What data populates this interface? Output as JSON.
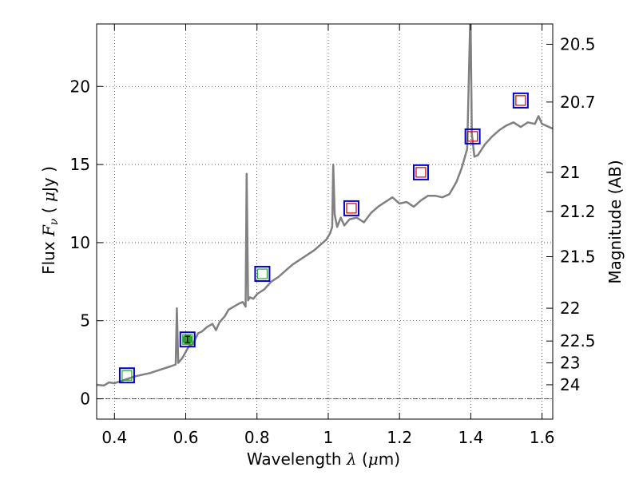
{
  "chart_data": {
    "type": "line",
    "xlabel": {
      "prefix": "Wavelength",
      "symbol": "λ",
      "unit_open": "(",
      "mu": "μ",
      "unit_rest": "m)"
    },
    "ylabel": {
      "prefix": "Flux",
      "symbol": "F",
      "sub": "ν",
      "unit_open": "(",
      "mu": "μ",
      "unit_rest": "Jy",
      "unit_close": ")"
    },
    "y2label": "Magnitude (AB)",
    "xlim": [
      0.35,
      1.63
    ],
    "ylim": [
      -1.3,
      24.0
    ],
    "grid": true,
    "x_ticks": [
      0.4,
      0.6,
      0.8,
      1.0,
      1.2,
      1.4,
      1.6
    ],
    "x_tick_labels": [
      "0.4",
      "0.6",
      "0.8",
      "1",
      "1.2",
      "1.4",
      "1.6"
    ],
    "y_ticks": [
      0,
      5,
      10,
      15,
      20
    ],
    "y_tick_labels": [
      "0",
      "5",
      "10",
      "15",
      "20"
    ],
    "y2_ticks": [
      {
        "label": "20.5",
        "flux": 22.7
      },
      {
        "label": "20.7",
        "flux": 19.0
      },
      {
        "label": "21",
        "flux": 14.5
      },
      {
        "label": "21.2",
        "flux": 12.0
      },
      {
        "label": "21.5",
        "flux": 9.1
      },
      {
        "label": "22",
        "flux": 5.8
      },
      {
        "label": "22.5",
        "flux": 3.7
      },
      {
        "label": "23",
        "flux": 2.3
      },
      {
        "label": "24",
        "flux": 0.9
      }
    ],
    "spectrum_color": "#808080",
    "spectrum": [
      [
        0.35,
        0.9
      ],
      [
        0.37,
        0.85
      ],
      [
        0.385,
        1.05
      ],
      [
        0.4,
        1.0
      ],
      [
        0.42,
        1.15
      ],
      [
        0.44,
        1.3
      ],
      [
        0.46,
        1.45
      ],
      [
        0.48,
        1.55
      ],
      [
        0.5,
        1.65
      ],
      [
        0.52,
        1.8
      ],
      [
        0.54,
        1.95
      ],
      [
        0.56,
        2.1
      ],
      [
        0.572,
        2.2
      ],
      [
        0.575,
        5.8
      ],
      [
        0.579,
        2.3
      ],
      [
        0.59,
        2.6
      ],
      [
        0.6,
        3.0
      ],
      [
        0.61,
        3.4
      ],
      [
        0.62,
        3.5
      ],
      [
        0.635,
        4.2
      ],
      [
        0.645,
        4.3
      ],
      [
        0.66,
        4.6
      ],
      [
        0.675,
        4.8
      ],
      [
        0.685,
        4.4
      ],
      [
        0.695,
        4.9
      ],
      [
        0.71,
        5.3
      ],
      [
        0.72,
        5.7
      ],
      [
        0.735,
        5.9
      ],
      [
        0.75,
        6.1
      ],
      [
        0.76,
        6.2
      ],
      [
        0.768,
        5.9
      ],
      [
        0.771,
        14.4
      ],
      [
        0.775,
        6.3
      ],
      [
        0.78,
        6.5
      ],
      [
        0.79,
        6.4
      ],
      [
        0.8,
        6.7
      ],
      [
        0.82,
        7.0
      ],
      [
        0.84,
        7.5
      ],
      [
        0.86,
        7.8
      ],
      [
        0.88,
        8.2
      ],
      [
        0.9,
        8.6
      ],
      [
        0.92,
        8.9
      ],
      [
        0.94,
        9.2
      ],
      [
        0.96,
        9.5
      ],
      [
        0.98,
        9.9
      ],
      [
        0.995,
        10.2
      ],
      [
        1.005,
        10.6
      ],
      [
        1.011,
        11.0
      ],
      [
        1.014,
        15.0
      ],
      [
        1.018,
        11.8
      ],
      [
        1.025,
        11.0
      ],
      [
        1.035,
        11.6
      ],
      [
        1.045,
        11.1
      ],
      [
        1.06,
        11.5
      ],
      [
        1.08,
        11.6
      ],
      [
        1.1,
        11.3
      ],
      [
        1.12,
        11.9
      ],
      [
        1.14,
        12.3
      ],
      [
        1.16,
        12.6
      ],
      [
        1.18,
        12.9
      ],
      [
        1.2,
        12.5
      ],
      [
        1.22,
        12.6
      ],
      [
        1.24,
        12.3
      ],
      [
        1.26,
        12.7
      ],
      [
        1.28,
        13.0
      ],
      [
        1.3,
        13.0
      ],
      [
        1.32,
        12.9
      ],
      [
        1.34,
        13.1
      ],
      [
        1.36,
        13.9
      ],
      [
        1.375,
        14.8
      ],
      [
        1.39,
        16.0
      ],
      [
        1.397,
        23.0
      ],
      [
        1.399,
        25.0
      ],
      [
        1.403,
        17.0
      ],
      [
        1.41,
        15.5
      ],
      [
        1.42,
        15.6
      ],
      [
        1.44,
        16.3
      ],
      [
        1.46,
        16.8
      ],
      [
        1.48,
        17.2
      ],
      [
        1.5,
        17.5
      ],
      [
        1.52,
        17.7
      ],
      [
        1.54,
        17.4
      ],
      [
        1.56,
        17.7
      ],
      [
        1.58,
        17.6
      ],
      [
        1.59,
        18.1
      ],
      [
        1.6,
        17.6
      ],
      [
        1.63,
        17.3
      ]
    ],
    "photometry": [
      {
        "x": 0.435,
        "y": 1.5,
        "inner_color": "#2ca02c"
      },
      {
        "x": 0.605,
        "y": 3.8,
        "inner_color": "#2ca02c"
      },
      {
        "x": 0.815,
        "y": 8.0,
        "inner_color": "#2ca02c"
      },
      {
        "x": 1.065,
        "y": 12.2,
        "inner_color": "#cc0000"
      },
      {
        "x": 1.26,
        "y": 14.5,
        "inner_color": "#cc0000"
      },
      {
        "x": 1.405,
        "y": 16.8,
        "inner_color": "#cc0000"
      },
      {
        "x": 1.54,
        "y": 19.1,
        "inner_color": "#cc0000"
      }
    ],
    "outer_box_color": "#0000cc",
    "measured_point": {
      "x": 0.605,
      "y": 3.8,
      "yerr": 0.2,
      "color": "#2ca02c"
    }
  }
}
